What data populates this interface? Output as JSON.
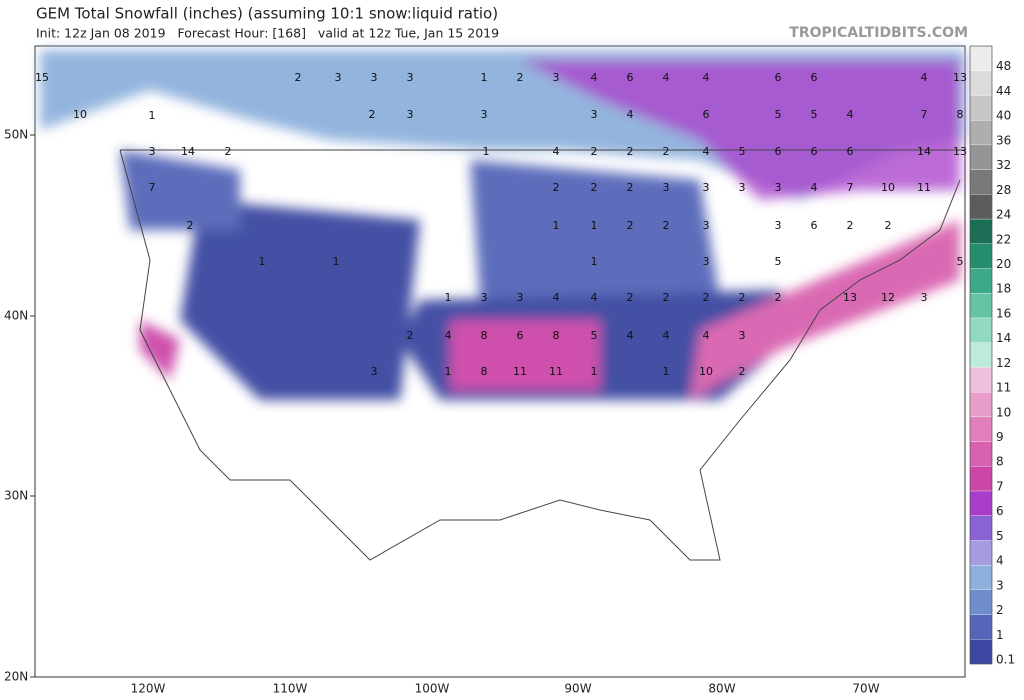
{
  "header": {
    "title": "GEM Total Snowfall (inches) (assuming 10:1 snow:liquid ratio)",
    "subtitle": "Init: 12z Jan 08 2019   Forecast Hour: [168]   valid at 12z Tue, Jan 15 2019",
    "watermark": "TROPICALTIDBITS.COM"
  },
  "lat_labels": [
    "50N",
    "40N",
    "30N",
    "20N"
  ],
  "lon_labels": [
    "120W",
    "110W",
    "100W",
    "90W",
    "80W",
    "70W"
  ],
  "colorbar": {
    "levels": [
      0.1,
      1,
      2,
      3,
      4,
      5,
      6,
      7,
      8,
      9,
      10,
      11,
      12,
      14,
      16,
      18,
      20,
      22,
      24,
      28,
      32,
      36,
      40,
      44,
      48
    ],
    "colors": [
      "#3b47a0",
      "#5566b8",
      "#6f8ccb",
      "#8eb0dc",
      "#a59be0",
      "#8a63d2",
      "#a83ccb",
      "#cc46a8",
      "#d862ae",
      "#e07fbb",
      "#e89ec9",
      "#efbfdb",
      "#bdebd9",
      "#93d8c0",
      "#67c3a6",
      "#3ea98a",
      "#258d6e",
      "#1b6e55",
      "#5c5c5c",
      "#797979",
      "#959595",
      "#aeaeae",
      "#c6c6c6",
      "#dbdbdb",
      "#ececea"
    ]
  },
  "map_labels": [
    "15",
    "10",
    "1",
    "3",
    "14",
    "2",
    "7",
    "2",
    "1",
    "1",
    "2",
    "3",
    "3",
    "3",
    "2",
    "3",
    "1",
    "2",
    "3",
    "4",
    "6",
    "4",
    "4",
    "6",
    "6",
    "4",
    "13",
    "3",
    "3",
    "4",
    "6",
    "5",
    "5",
    "4",
    "7",
    "8",
    "1",
    "4",
    "2",
    "2",
    "2",
    "4",
    "5",
    "6",
    "6",
    "6",
    "14",
    "13",
    "2",
    "2",
    "2",
    "3",
    "3",
    "3",
    "3",
    "4",
    "7",
    "10",
    "11",
    "1",
    "1",
    "2",
    "2",
    "3",
    "3",
    "6",
    "2",
    "2",
    "1",
    "3",
    "5",
    "5",
    "1",
    "3",
    "3",
    "4",
    "4",
    "2",
    "2",
    "2",
    "2",
    "2",
    "13",
    "12",
    "3",
    "2",
    "4",
    "8",
    "6",
    "8",
    "5",
    "4",
    "4",
    "4",
    "3",
    "3",
    "1",
    "8",
    "11",
    "11",
    "1",
    "1",
    "10",
    "2"
  ]
}
